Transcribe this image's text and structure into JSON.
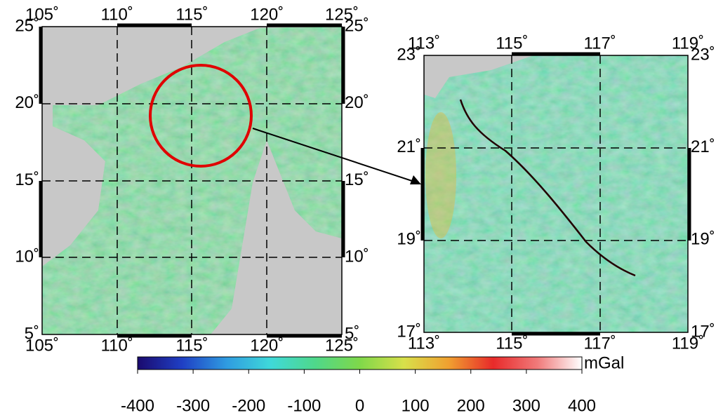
{
  "left_map": {
    "lon_labels": [
      "105˚",
      "110˚",
      "115˚",
      "120˚",
      "125˚"
    ],
    "lat_labels": [
      "25˚",
      "20˚",
      "15˚",
      "10˚",
      "5˚"
    ]
  },
  "right_map": {
    "lon_labels": [
      "113˚",
      "115˚",
      "117˚",
      "119˚"
    ],
    "lat_labels": [
      "23˚",
      "21˚",
      "19˚",
      "17˚"
    ]
  },
  "colorbar": {
    "unit": "mGal",
    "range": [
      -400,
      400
    ],
    "ticks": [
      -400,
      -300,
      -200,
      -100,
      0,
      100,
      200,
      300,
      400
    ],
    "colors": [
      "#1a0a6e",
      "#1f3fc4",
      "#2f9be0",
      "#3fd9d9",
      "#4fd88a",
      "#7fd84a",
      "#d8e04a",
      "#f0a030",
      "#e82a2a",
      "#f07a7a",
      "#ffffff"
    ]
  }
}
